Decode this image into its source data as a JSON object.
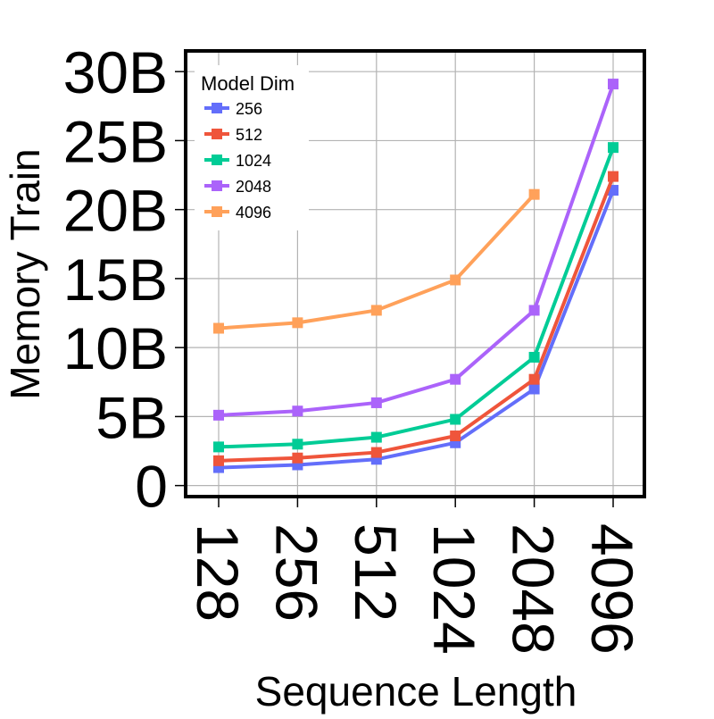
{
  "chart_data": {
    "type": "line",
    "xlabel": "Sequence Length",
    "ylabel": "Memory Train",
    "categories": [
      "128",
      "256",
      "512",
      "1024",
      "2048",
      "4096"
    ],
    "ylim": [
      -800000000,
      31500000000
    ],
    "yticks": [
      0,
      5000000000,
      10000000000,
      15000000000,
      20000000000,
      25000000000,
      30000000000
    ],
    "ytick_labels": [
      "0",
      "5B",
      "10B",
      "15B",
      "20B",
      "25B",
      "30B"
    ],
    "grid": true,
    "legend": {
      "title": "Model Dim",
      "placement": "top-left"
    },
    "series": [
      {
        "name": "256",
        "color": "#636efa",
        "marker": "square",
        "values": [
          1300000000,
          1500000000,
          1900000000,
          3100000000,
          7000000000,
          21400000000
        ]
      },
      {
        "name": "512",
        "color": "#ef553b",
        "marker": "square",
        "values": [
          1800000000,
          2000000000,
          2400000000,
          3600000000,
          7700000000,
          22400000000
        ]
      },
      {
        "name": "1024",
        "color": "#00cc96",
        "marker": "square",
        "values": [
          2800000000,
          3000000000,
          3500000000,
          4800000000,
          9300000000,
          24500000000
        ]
      },
      {
        "name": "2048",
        "color": "#ab63fa",
        "marker": "square",
        "values": [
          5100000000,
          5400000000,
          6000000000,
          7700000000,
          12700000000,
          29100000000
        ]
      },
      {
        "name": "4096",
        "color": "#ffa15a",
        "marker": "square",
        "values": [
          11400000000,
          11800000000,
          12700000000,
          14900000000,
          21100000000,
          null
        ]
      }
    ]
  }
}
